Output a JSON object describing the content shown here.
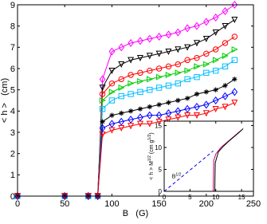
{
  "chart_data": [
    {
      "type": "line",
      "xlabel": "B   (G)",
      "ylabel": "< h >   (cm)",
      "xlim": [
        0,
        250
      ],
      "ylim": [
        0,
        9
      ],
      "xticks": [
        0,
        50,
        100,
        150,
        200,
        250
      ],
      "yticks": [
        0,
        1,
        2,
        3,
        4,
        5,
        6,
        7,
        8,
        9
      ],
      "x": [
        0,
        50,
        75,
        85,
        90,
        100,
        110,
        120,
        130,
        140,
        150,
        160,
        170,
        180,
        190,
        200,
        210,
        220,
        230
      ],
      "series": [
        {
          "color": "#ff00ff",
          "marker": "diamond",
          "values": [
            0,
            0,
            0,
            0,
            5.5,
            6.8,
            7.0,
            7.2,
            7.3,
            7.4,
            7.5,
            7.6,
            7.7,
            7.9,
            8.0,
            8.2,
            8.4,
            8.7,
            9.0
          ]
        },
        {
          "color": "#000000",
          "marker": "tri-down",
          "values": [
            0,
            0,
            0,
            0,
            5.1,
            5.9,
            6.2,
            6.4,
            6.5,
            6.6,
            6.7,
            6.8,
            6.9,
            7.0,
            7.2,
            7.4,
            7.7,
            8.0,
            8.3
          ]
        },
        {
          "color": "#ff0000",
          "marker": "circle",
          "values": [
            0,
            0,
            0,
            0,
            4.8,
            5.3,
            5.5,
            5.7,
            5.8,
            5.9,
            6.0,
            6.1,
            6.2,
            6.4,
            6.5,
            6.7,
            6.9,
            7.2,
            7.5
          ]
        },
        {
          "color": "#00cc00",
          "marker": "tri-right",
          "values": [
            0,
            0,
            0,
            0,
            4.5,
            4.9,
            5.1,
            5.3,
            5.4,
            5.5,
            5.6,
            5.7,
            5.8,
            5.9,
            6.1,
            6.2,
            6.4,
            6.6,
            6.9
          ]
        },
        {
          "color": "#00bfff",
          "marker": "square",
          "values": [
            0,
            0,
            0,
            0,
            4.1,
            4.5,
            4.7,
            4.8,
            4.9,
            5.0,
            5.1,
            5.2,
            5.3,
            5.5,
            5.6,
            5.8,
            5.9,
            6.1,
            6.4
          ]
        },
        {
          "color": "#000000",
          "marker": "star",
          "values": [
            0,
            0,
            0,
            0,
            3.5,
            3.8,
            3.9,
            4.0,
            4.1,
            4.2,
            4.3,
            4.4,
            4.5,
            4.6,
            4.8,
            4.9,
            5.0,
            5.2,
            5.5
          ]
        },
        {
          "color": "#0000ff",
          "marker": "diamond",
          "values": [
            0,
            0,
            0,
            0,
            3.2,
            3.4,
            3.5,
            3.6,
            3.7,
            3.8,
            3.8,
            3.9,
            4.0,
            4.1,
            4.2,
            4.3,
            4.5,
            4.7,
            4.9
          ]
        },
        {
          "color": "#ff0000",
          "marker": "tri-down",
          "values": [
            0,
            0,
            0,
            0,
            2.9,
            3.1,
            3.2,
            3.3,
            3.4,
            3.4,
            3.5,
            3.6,
            3.7,
            3.8,
            3.8,
            3.9,
            4.1,
            4.2,
            4.4
          ]
        }
      ]
    },
    {
      "type": "line",
      "ylabel": [
        "< h > M",
        "1/2",
        " (cm g",
        "1/2",
        ")"
      ],
      "annotation": [
        "B",
        "1/2"
      ],
      "xlim": [
        0,
        17.3
      ],
      "ylim": [
        0,
        16
      ],
      "xticks": [
        0,
        5,
        10,
        15
      ],
      "yticks": [
        0,
        5,
        10,
        15
      ],
      "series": [
        {
          "color": "#0000ff",
          "dashed": true,
          "x": [
            0,
            9.5
          ],
          "values": [
            0,
            9.2
          ]
        },
        {
          "color": "#cc0066",
          "x": [
            0,
            3,
            6,
            9,
            9.5,
            9.6,
            10,
            11,
            12,
            13,
            14,
            15
          ],
          "values": [
            0,
            0,
            0,
            0,
            0,
            7,
            8.5,
            10,
            11,
            12,
            13,
            14
          ]
        },
        {
          "color": "#000000",
          "x": [
            0,
            4,
            8,
            9.8,
            9.9,
            10.5,
            11.5,
            12.5,
            13.5,
            14.5,
            15.3
          ],
          "values": [
            0,
            0,
            0,
            0,
            6.5,
            9,
            10.3,
            11.4,
            12.4,
            13.4,
            14.3
          ]
        }
      ]
    }
  ]
}
